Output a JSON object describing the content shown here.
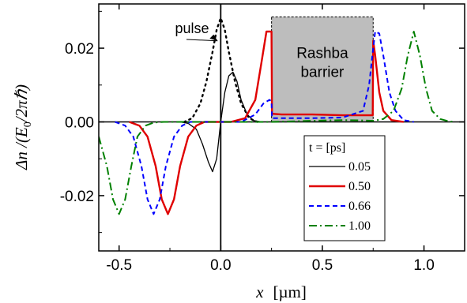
{
  "chart_data": {
    "type": "line",
    "xlabel_symbol": "x",
    "xlabel_unit": "[µm]",
    "ylabel_prefix": "Δn /(E",
    "ylabel_sub": "0",
    "ylabel_suffix": "/2πℏ)",
    "xlim": [
      -0.6,
      1.2
    ],
    "ylim": [
      -0.035,
      0.032
    ],
    "x_ticks": [
      -0.5,
      0.0,
      0.5,
      1.0
    ],
    "x_tick_labels": [
      "-0.5",
      "0.0",
      "0.5",
      "1.0"
    ],
    "y_ticks": [
      -0.02,
      0.0,
      0.02
    ],
    "y_tick_labels": [
      "-0.02",
      "0.00",
      "0.02"
    ],
    "legend_title": "t = [ps]",
    "legend_position": "bottom-right",
    "barrier": {
      "label_line1": "Rashba",
      "label_line2": "barrier",
      "x_range": [
        0.25,
        0.75
      ],
      "y_top": 0.0285
    },
    "pulse_annotation": {
      "text": "pulse",
      "points_to": [
        0.0,
        0.022
      ]
    },
    "series": [
      {
        "name": "0.05",
        "color": "#000000",
        "style": "solid",
        "x": [
          -0.2,
          -0.16,
          -0.12,
          -0.09,
          -0.06,
          -0.04,
          -0.02,
          0.0,
          0.02,
          0.04,
          0.06,
          0.08,
          0.1,
          0.13,
          0.16,
          0.2
        ],
        "y": [
          0.0,
          -0.0004,
          -0.002,
          -0.006,
          -0.011,
          -0.0135,
          -0.01,
          0.0,
          0.008,
          0.0125,
          0.0135,
          0.011,
          0.006,
          0.002,
          0.0004,
          0.0
        ]
      },
      {
        "name": "0.50",
        "color": "#e00000",
        "style": "solid",
        "x": [
          -0.45,
          -0.4,
          -0.36,
          -0.32,
          -0.29,
          -0.26,
          -0.23,
          -0.2,
          -0.16,
          -0.12,
          -0.08,
          0.05,
          0.12,
          0.17,
          0.2,
          0.225,
          0.25,
          0.252,
          0.3,
          0.45,
          0.6,
          0.7,
          0.748,
          0.75,
          0.76,
          0.78,
          0.8,
          0.84,
          0.9
        ],
        "y": [
          0.0,
          -0.001,
          -0.004,
          -0.012,
          -0.021,
          -0.025,
          -0.021,
          -0.012,
          -0.004,
          -0.001,
          0.0,
          0.0,
          0.001,
          0.006,
          0.016,
          0.0245,
          0.0245,
          0.0022,
          0.002,
          0.002,
          0.0018,
          0.0018,
          0.0018,
          0.022,
          0.018,
          0.008,
          0.003,
          0.0005,
          0.0
        ]
      },
      {
        "name": "0.66",
        "color": "#0000ff",
        "style": "dashed",
        "x": [
          -0.52,
          -0.47,
          -0.43,
          -0.39,
          -0.36,
          -0.33,
          -0.3,
          -0.27,
          -0.23,
          -0.19,
          -0.15,
          0.1,
          0.17,
          0.21,
          0.24,
          0.25,
          0.252,
          0.45,
          0.6,
          0.7,
          0.73,
          0.75,
          0.76,
          0.78,
          0.8,
          0.83,
          0.86,
          0.9,
          0.95
        ],
        "y": [
          0.0,
          -0.001,
          -0.004,
          -0.012,
          -0.021,
          -0.025,
          -0.021,
          -0.012,
          -0.004,
          -0.001,
          0.0,
          0.0,
          0.002,
          0.005,
          0.006,
          0.0055,
          0.001,
          0.001,
          0.0012,
          0.003,
          0.01,
          0.02,
          0.0245,
          0.024,
          0.018,
          0.008,
          0.003,
          0.0005,
          0.0
        ]
      },
      {
        "name": "1.00",
        "color": "#008000",
        "style": "dashdot",
        "x": [
          -0.6,
          -0.56,
          -0.53,
          -0.5,
          -0.47,
          -0.44,
          -0.41,
          -0.37,
          -0.33,
          -0.28,
          0.25,
          0.45,
          0.6,
          0.7,
          0.75,
          0.8,
          0.85,
          0.89,
          0.92,
          0.95,
          0.98,
          1.01,
          1.04,
          1.08,
          1.12,
          1.15
        ],
        "y": [
          -0.004,
          -0.012,
          -0.021,
          -0.025,
          -0.021,
          -0.012,
          -0.004,
          -0.001,
          -0.0002,
          0.0,
          0.0,
          0.0003,
          0.0005,
          0.0004,
          0.0003,
          0.0008,
          0.003,
          0.009,
          0.018,
          0.0245,
          0.018,
          0.009,
          0.003,
          0.0008,
          0.0002,
          0.0
        ]
      }
    ],
    "pulse_series": {
      "color": "#000000",
      "style": "dotted",
      "x": [
        -0.18,
        -0.14,
        -0.1,
        -0.07,
        -0.04,
        -0.02,
        0.0,
        0.02,
        0.04,
        0.07,
        0.1,
        0.14,
        0.18
      ],
      "y": [
        0.0,
        0.001,
        0.005,
        0.011,
        0.019,
        0.025,
        0.0282,
        0.025,
        0.019,
        0.011,
        0.005,
        0.001,
        0.0
      ]
    }
  }
}
